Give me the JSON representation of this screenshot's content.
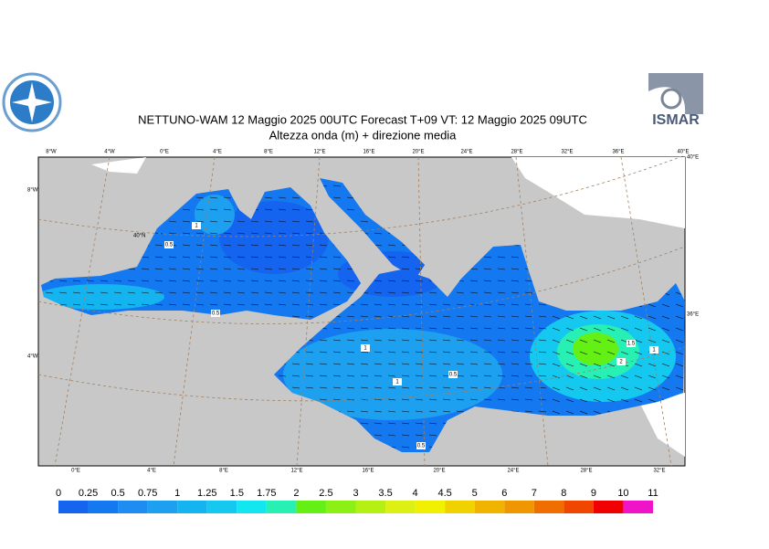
{
  "header": {
    "title": "NETTUNO-WAM  12   Maggio  2025 00UTC Forecast T+09 VT: 12   Maggio  2025 09UTC",
    "subtitle": "Altezza onda (m) + direzione media"
  },
  "logo": {
    "text": "ISMAR"
  },
  "map": {
    "top_labels": [
      "8°W",
      "4°W",
      "0°E",
      "4°E",
      "8°E",
      "12°E",
      "16°E",
      "20°E",
      "24°E",
      "28°E",
      "32°E",
      "36°E",
      "40°E"
    ],
    "bottom_labels": [
      "0°E",
      "4°E",
      "8°E",
      "12°E",
      "16°E",
      "20°E",
      "24°E",
      "28°E",
      "32°E"
    ],
    "left_labels": [
      "8°W",
      "4°W"
    ],
    "right_labels": [
      "40°E",
      "36°E"
    ],
    "inner_labels": [
      "40°N"
    ],
    "contour_labels": [
      "1",
      "0.5",
      "0.5",
      "1",
      "0.5",
      "1",
      "0.5",
      "1.5",
      "2",
      "1"
    ]
  },
  "colorbar": {
    "ticks": [
      0,
      0.25,
      0.5,
      0.75,
      1,
      1.25,
      1.5,
      1.75,
      2,
      2.5,
      3,
      3.5,
      4,
      4.5,
      5,
      6,
      7,
      8,
      9,
      10,
      11
    ],
    "colors": [
      "#1464f0",
      "#1478f0",
      "#1e8cf0",
      "#1ea0f0",
      "#14b4f0",
      "#14c8f0",
      "#14e6f0",
      "#28f0b4",
      "#64f014",
      "#8cf014",
      "#b4f014",
      "#dcf014",
      "#f0f000",
      "#f0d200",
      "#f0b400",
      "#f09600",
      "#f06e00",
      "#f04600",
      "#f00000",
      "#f014c8"
    ]
  }
}
